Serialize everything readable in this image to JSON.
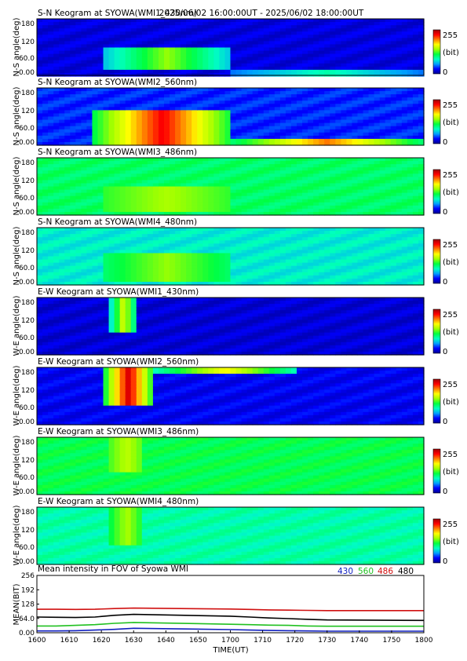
{
  "header": {
    "time_range": "2025/06/02 16:00:00UT - 2025/06/02 18:00:00UT"
  },
  "colors": {
    "colormap": [
      "#000090",
      "#0000ff",
      "#00a0ff",
      "#00ffc0",
      "#00ff40",
      "#a0ff00",
      "#ffff00",
      "#ff8000",
      "#ff0000",
      "#a00000"
    ],
    "line_430": "#1020c0",
    "line_560": "#20c020",
    "line_486": "#d01010",
    "line_480": "#000000"
  },
  "chart_data": [
    {
      "type": "heatmap",
      "title": "S-N Keogram at SYOWA(WMI1_430nm)",
      "ylabel": "N-S angle(deg)",
      "yticks": [
        "0.00",
        "60.0",
        "120",
        "180"
      ],
      "ylim": [
        0,
        180
      ],
      "colorbar": {
        "min_label": "0",
        "unit_label": "(bit)",
        "max_label": "255"
      },
      "background_level": 20,
      "features": [
        {
          "t_start": 1635,
          "t_end": 1700,
          "angle_range": [
            20,
            90
          ],
          "level": 140
        },
        {
          "t_start": 1700,
          "t_end": 1800,
          "angle_range": [
            0,
            20
          ],
          "level": 90
        }
      ]
    },
    {
      "type": "heatmap",
      "title": "S-N Keogram at SYOWA(WMI2_560nm)",
      "ylabel": "N-S angle(deg)",
      "yticks": [
        "0.00",
        "60.0",
        "120",
        "180"
      ],
      "ylim": [
        0,
        180
      ],
      "colorbar": {
        "min_label": "0",
        "unit_label": "(bit)",
        "max_label": "255"
      },
      "background_level": 35,
      "features": [
        {
          "t_start": 1630,
          "t_end": 1700,
          "angle_range": [
            0,
            110
          ],
          "level": 230
        },
        {
          "t_start": 1700,
          "t_end": 1800,
          "angle_range": [
            0,
            20
          ],
          "level": 200
        }
      ]
    },
    {
      "type": "heatmap",
      "title": "S-N Keogram at SYOWA(WMI3_486nm)",
      "ylabel": "N-S angle(deg)",
      "yticks": [
        "0.00",
        "60.0",
        "120",
        "180"
      ],
      "ylim": [
        0,
        180
      ],
      "colorbar": {
        "min_label": "0",
        "unit_label": "(bit)",
        "max_label": "255"
      },
      "background_level": 105,
      "features": [
        {
          "t_start": 1635,
          "t_end": 1700,
          "angle_range": [
            10,
            90
          ],
          "level": 145
        }
      ]
    },
    {
      "type": "heatmap",
      "title": "S-N Keogram at SYOWA(WMI4_480nm)",
      "ylabel": "N-S angle(deg)",
      "yticks": [
        "0.00",
        "60.0",
        "120",
        "180"
      ],
      "ylim": [
        0,
        180
      ],
      "colorbar": {
        "min_label": "0",
        "unit_label": "(bit)",
        "max_label": "255"
      },
      "background_level": 80,
      "features": [
        {
          "t_start": 1635,
          "t_end": 1700,
          "angle_range": [
            10,
            100
          ],
          "level": 140
        }
      ]
    },
    {
      "type": "heatmap",
      "title": "E-W Keogram at SYOWA(WMI1_430nm)",
      "ylabel": "W-E angle(deg)",
      "yticks": [
        "0.00",
        "60.0",
        "120",
        "180"
      ],
      "ylim": [
        0,
        180
      ],
      "colorbar": {
        "min_label": "0",
        "unit_label": "(bit)",
        "max_label": "255"
      },
      "background_level": 18,
      "features": [
        {
          "t_start": 1638,
          "t_end": 1652,
          "angle_range": [
            70,
            180
          ],
          "level": 160
        }
      ]
    },
    {
      "type": "heatmap",
      "title": "E-W Keogram at SYOWA(WMI2_560nm)",
      "ylabel": "W-E angle(deg)",
      "yticks": [
        "0.00",
        "60.0",
        "120",
        "180"
      ],
      "ylim": [
        0,
        180
      ],
      "colorbar": {
        "min_label": "0",
        "unit_label": "(bit)",
        "max_label": "255"
      },
      "background_level": 25,
      "features": [
        {
          "t_start": 1635,
          "t_end": 1660,
          "angle_range": [
            60,
            180
          ],
          "level": 240
        },
        {
          "t_start": 1660,
          "t_end": 1735,
          "angle_range": [
            160,
            180
          ],
          "level": 170
        }
      ]
    },
    {
      "type": "heatmap",
      "title": "E-W Keogram at SYOWA(WMI3_486nm)",
      "ylabel": "W-E angle(deg)",
      "yticks": [
        "0.00",
        "60.0",
        "120",
        "180"
      ],
      "ylim": [
        0,
        180
      ],
      "colorbar": {
        "min_label": "0",
        "unit_label": "(bit)",
        "max_label": "255"
      },
      "background_level": 110,
      "features": [
        {
          "t_start": 1638,
          "t_end": 1655,
          "angle_range": [
            70,
            180
          ],
          "level": 150
        }
      ]
    },
    {
      "type": "heatmap",
      "title": "E-W Keogram at SYOWA(WMI4_480nm)",
      "ylabel": "W-E angle(deg)",
      "yticks": [
        "0.00",
        "60.0",
        "120",
        "180"
      ],
      "ylim": [
        0,
        180
      ],
      "colorbar": {
        "min_label": "0",
        "unit_label": "(bit)",
        "max_label": "255"
      },
      "background_level": 90,
      "features": [
        {
          "t_start": 1638,
          "t_end": 1655,
          "angle_range": [
            60,
            180
          ],
          "level": 145
        }
      ]
    },
    {
      "type": "line",
      "title": "Mean intensity in FOV of Syowa WMI",
      "xlabel": "TIME(UT)",
      "ylabel": "MEAN(BIT)",
      "xlim": [
        1600,
        1800
      ],
      "ylim": [
        0,
        256
      ],
      "xticks": [
        "1600",
        "1610",
        "1620",
        "1630",
        "1640",
        "1650",
        "1700",
        "1710",
        "1720",
        "1730",
        "1740",
        "1750",
        "1800"
      ],
      "yticks": [
        "0.00",
        "64.0",
        "128",
        "192",
        "256"
      ],
      "legend_placement": "top-right",
      "x": [
        1600,
        1610,
        1620,
        1630,
        1640,
        1650,
        1700,
        1710,
        1720,
        1730,
        1740,
        1750,
        1800
      ],
      "series": [
        {
          "name": "430",
          "color": "#1020c0",
          "values": [
            8,
            8,
            9,
            12,
            15,
            20,
            14,
            12,
            10,
            9,
            8,
            7,
            7
          ]
        },
        {
          "name": "560",
          "color": "#20c020",
          "values": [
            30,
            30,
            33,
            36,
            42,
            46,
            38,
            36,
            34,
            33,
            30,
            29,
            29
          ]
        },
        {
          "name": "486",
          "color": "#d01010",
          "values": [
            105,
            105,
            104,
            105,
            108,
            110,
            106,
            104,
            102,
            101,
            100,
            99,
            99
          ]
        },
        {
          "name": "480",
          "color": "#000000",
          "values": [
            70,
            69,
            68,
            70,
            78,
            82,
            74,
            70,
            66,
            63,
            60,
            57,
            55
          ]
        }
      ]
    }
  ]
}
